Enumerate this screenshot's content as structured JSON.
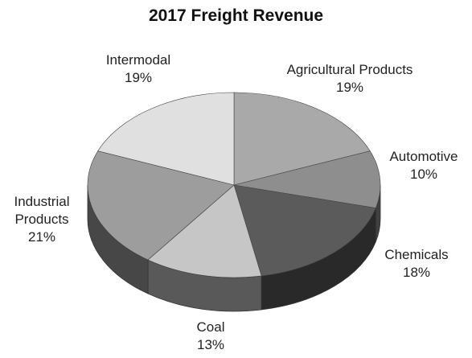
{
  "chart_data": {
    "type": "pie",
    "title": "2017 Freight Revenue",
    "categories": [
      "Agricultural Products",
      "Automotive",
      "Chemicals",
      "Coal",
      "Industrial Products",
      "Intermodal"
    ],
    "values": [
      19,
      10,
      18,
      13,
      21,
      19
    ],
    "value_labels": [
      "19%",
      "10%",
      "18%",
      "13%",
      "21%",
      "19%"
    ],
    "colors": [
      "#a9a9a9",
      "#8e8e8e",
      "#5b5b5b",
      "#c6c6c6",
      "#9d9d9d",
      "#e0e0e0"
    ]
  }
}
